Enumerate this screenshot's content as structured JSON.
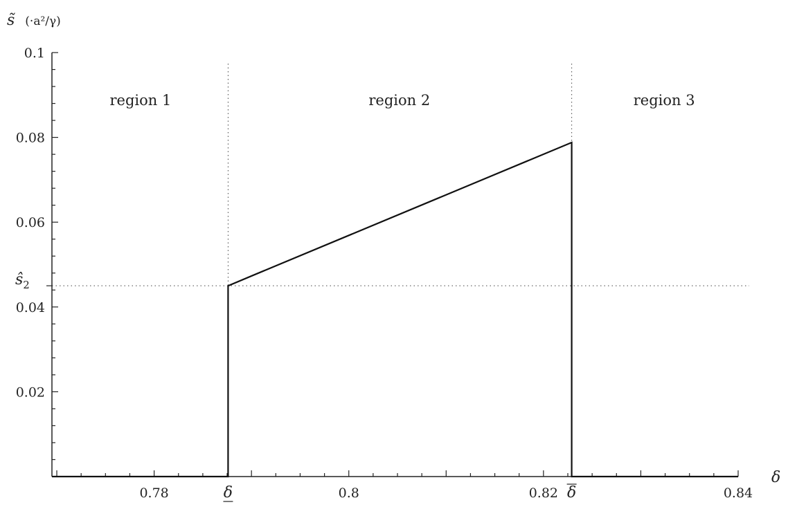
{
  "chart_data": {
    "type": "line",
    "title": "",
    "xlabel": "δ",
    "ylabel": "s̃",
    "ylabel_unit": "(·a²/γ)",
    "xlim": [
      0.7695,
      0.84
    ],
    "ylim": [
      0,
      0.1
    ],
    "x_ticks": [
      {
        "value": 0.78,
        "label": "0.78"
      },
      {
        "value": 0.8,
        "label": "0.8"
      },
      {
        "value": 0.82,
        "label": "0.82"
      },
      {
        "value": 0.84,
        "label": "0.84"
      }
    ],
    "y_ticks": [
      {
        "value": 0.02,
        "label": "0.02"
      },
      {
        "value": 0.04,
        "label": "0.04"
      },
      {
        "value": 0.06,
        "label": "0.06"
      },
      {
        "value": 0.08,
        "label": "0.08"
      },
      {
        "value": 0.1,
        "label": "0.1"
      }
    ],
    "special_x": [
      {
        "value": 0.7876,
        "label": "δ",
        "mark": "underline"
      },
      {
        "value": 0.8229,
        "label": "δ",
        "mark": "overline"
      }
    ],
    "special_y": {
      "value": 0.045,
      "label": "ŝ",
      "subscript": "2"
    },
    "regions": [
      {
        "label": "region 1",
        "x": 0.7786
      },
      {
        "label": "region 2",
        "x": 0.8052
      },
      {
        "label": "region 3",
        "x": 0.8324
      }
    ],
    "series": [
      {
        "points": [
          [
            0.7695,
            0
          ],
          [
            0.7876,
            0
          ],
          [
            0.7876,
            0.045
          ],
          [
            0.7902,
            0.0475
          ],
          [
            0.8229,
            0.0788
          ],
          [
            0.8229,
            0
          ],
          [
            0.84,
            0
          ]
        ]
      }
    ],
    "grid": false
  }
}
